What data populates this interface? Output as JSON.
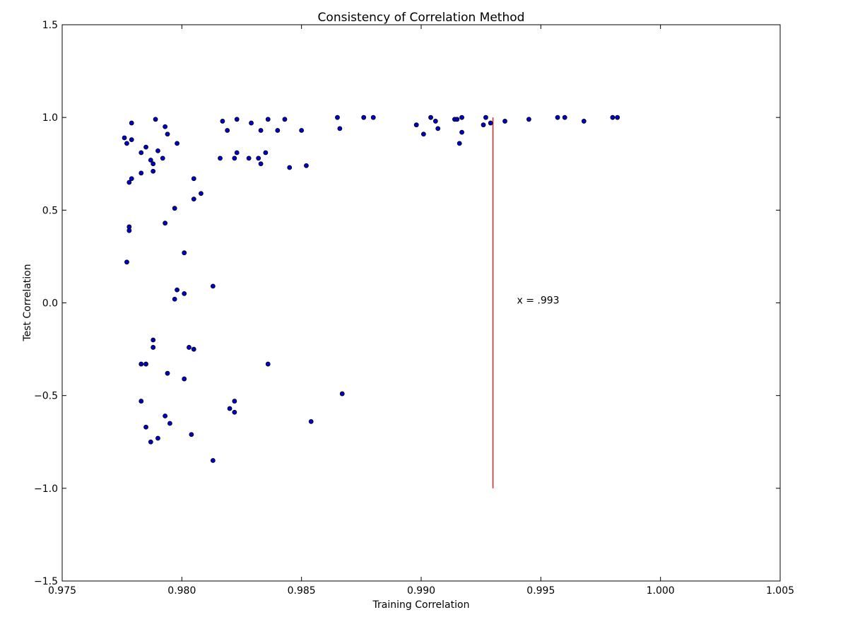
{
  "chart_data": {
    "type": "scatter",
    "title": "Consistency of Correlation Method",
    "xlabel": "Training Correlation",
    "ylabel": "Test Correlation",
    "xlim": [
      0.975,
      1.005
    ],
    "ylim": [
      -1.5,
      1.5
    ],
    "xticks": [
      "0.975",
      "0.980",
      "0.985",
      "0.990",
      "0.995",
      "1.000",
      "1.005"
    ],
    "yticks": [
      "−1.5",
      "−1.0",
      "−0.5",
      "0.0",
      "0.5",
      "1.0",
      "1.5"
    ],
    "grid": false,
    "colors": {
      "point_fill": "#0000cc",
      "point_edge": "#000000",
      "line": "#dd2222"
    },
    "vline": {
      "x": 0.993,
      "y_range": [
        -1.0,
        1.0
      ]
    },
    "annotation": {
      "text": "x = .993",
      "x": 0.994,
      "y": 0.0
    },
    "points": [
      [
        0.9776,
        0.89
      ],
      [
        0.9777,
        0.86
      ],
      [
        0.9779,
        0.97
      ],
      [
        0.9779,
        0.88
      ],
      [
        0.9789,
        0.99
      ],
      [
        0.9793,
        0.95
      ],
      [
        0.9794,
        0.91
      ],
      [
        0.9785,
        0.84
      ],
      [
        0.9783,
        0.81
      ],
      [
        0.979,
        0.82
      ],
      [
        0.9798,
        0.86
      ],
      [
        0.9787,
        0.77
      ],
      [
        0.9788,
        0.75
      ],
      [
        0.9792,
        0.78
      ],
      [
        0.9788,
        0.71
      ],
      [
        0.9783,
        0.7
      ],
      [
        0.9779,
        0.67
      ],
      [
        0.9778,
        0.65
      ],
      [
        0.9805,
        0.67
      ],
      [
        0.9808,
        0.59
      ],
      [
        0.9805,
        0.56
      ],
      [
        0.9797,
        0.51
      ],
      [
        0.9793,
        0.43
      ],
      [
        0.9778,
        0.41
      ],
      [
        0.9778,
        0.39
      ],
      [
        0.9801,
        0.27
      ],
      [
        0.9777,
        0.22
      ],
      [
        0.9813,
        0.09
      ],
      [
        0.9798,
        0.07
      ],
      [
        0.9801,
        0.05
      ],
      [
        0.9797,
        0.02
      ],
      [
        0.9788,
        -0.2
      ],
      [
        0.9788,
        -0.24
      ],
      [
        0.9803,
        -0.24
      ],
      [
        0.9805,
        -0.25
      ],
      [
        0.9783,
        -0.33
      ],
      [
        0.9785,
        -0.33
      ],
      [
        0.9794,
        -0.38
      ],
      [
        0.9801,
        -0.41
      ],
      [
        0.9836,
        -0.33
      ],
      [
        0.9867,
        -0.49
      ],
      [
        0.9783,
        -0.53
      ],
      [
        0.9822,
        -0.53
      ],
      [
        0.982,
        -0.57
      ],
      [
        0.9822,
        -0.59
      ],
      [
        0.9793,
        -0.61
      ],
      [
        0.9795,
        -0.65
      ],
      [
        0.9785,
        -0.67
      ],
      [
        0.9804,
        -0.71
      ],
      [
        0.979,
        -0.73
      ],
      [
        0.9787,
        -0.75
      ],
      [
        0.9854,
        -0.64
      ],
      [
        0.9813,
        -0.85
      ],
      [
        0.9817,
        0.98
      ],
      [
        0.9823,
        0.99
      ],
      [
        0.9836,
        0.99
      ],
      [
        0.9843,
        0.99
      ],
      [
        0.9829,
        0.97
      ],
      [
        0.9819,
        0.93
      ],
      [
        0.9833,
        0.93
      ],
      [
        0.984,
        0.93
      ],
      [
        0.985,
        0.93
      ],
      [
        0.9823,
        0.81
      ],
      [
        0.9835,
        0.81
      ],
      [
        0.9816,
        0.78
      ],
      [
        0.9822,
        0.78
      ],
      [
        0.9828,
        0.78
      ],
      [
        0.9832,
        0.78
      ],
      [
        0.9833,
        0.75
      ],
      [
        0.9845,
        0.73
      ],
      [
        0.9852,
        0.74
      ],
      [
        0.9865,
        1.0
      ],
      [
        0.9866,
        0.94
      ],
      [
        0.9876,
        1.0
      ],
      [
        0.988,
        1.0
      ],
      [
        0.9898,
        0.96
      ],
      [
        0.9901,
        0.91
      ],
      [
        0.9904,
        1.0
      ],
      [
        0.9906,
        0.98
      ],
      [
        0.9907,
        0.94
      ],
      [
        0.9914,
        0.99
      ],
      [
        0.9915,
        0.99
      ],
      [
        0.9917,
        1.0
      ],
      [
        0.9917,
        0.92
      ],
      [
        0.9916,
        0.86
      ],
      [
        0.9926,
        0.96
      ],
      [
        0.9927,
        1.0
      ],
      [
        0.9929,
        0.97
      ],
      [
        0.9935,
        0.98
      ],
      [
        0.9945,
        0.99
      ],
      [
        0.9957,
        1.0
      ],
      [
        0.996,
        1.0
      ],
      [
        0.9968,
        0.98
      ],
      [
        0.998,
        1.0
      ],
      [
        0.9982,
        1.0
      ]
    ]
  }
}
